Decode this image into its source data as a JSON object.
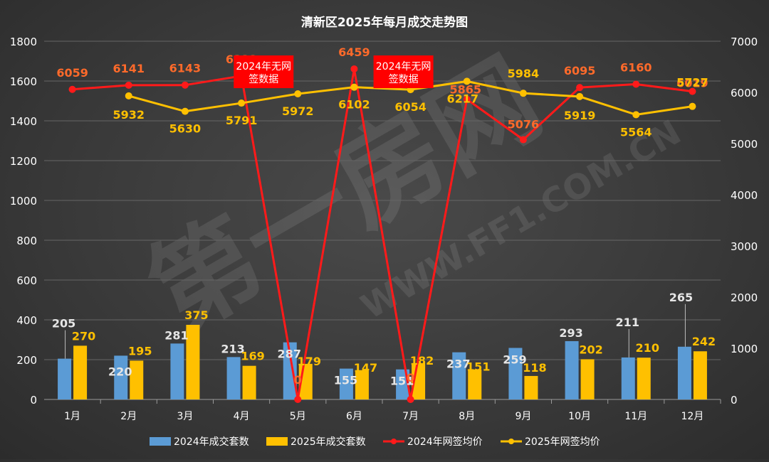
{
  "chart_data": {
    "type": "bar",
    "title": "清新区2025年每月成交走势图",
    "categories": [
      "1月",
      "2月",
      "3月",
      "4月",
      "5月",
      "6月",
      "7月",
      "8月",
      "9月",
      "10月",
      "11月",
      "12月"
    ],
    "y_left": {
      "min": 0,
      "max": 1800,
      "ticks": [
        0,
        200,
        400,
        600,
        800,
        1000,
        1200,
        1400,
        1600,
        1800
      ]
    },
    "y_right": {
      "min": 0,
      "max": 7000,
      "ticks": [
        0,
        1000,
        2000,
        3000,
        4000,
        5000,
        6000,
        7000
      ]
    },
    "series": [
      {
        "name": "2024年成交套数",
        "type": "bar",
        "axis": "left",
        "color": "#5b9bd5",
        "values": [
          205,
          220,
          281,
          213,
          287,
          155,
          151,
          237,
          259,
          293,
          211,
          265
        ]
      },
      {
        "name": "2025年成交套数",
        "type": "bar",
        "axis": "left",
        "color": "#ffc000",
        "values": [
          270,
          195,
          375,
          169,
          179,
          147,
          182,
          151,
          118,
          202,
          210,
          242
        ]
      },
      {
        "name": "2024年网签均价",
        "type": "line",
        "axis": "right",
        "color": "#ff1a1a",
        "values": [
          6059,
          6141,
          6143,
          6322,
          0,
          6459,
          0,
          5865,
          5076,
          6095,
          6160,
          6019
        ]
      },
      {
        "name": "2025年网签均价",
        "type": "line",
        "axis": "right",
        "color": "#ffc000",
        "values": [
          null,
          5932,
          5630,
          5791,
          5972,
          6102,
          6054,
          6217,
          5984,
          5919,
          5564,
          5727
        ]
      }
    ],
    "annotations": [
      {
        "text": "2024年无网\n签数据",
        "month": "5月"
      },
      {
        "text": "2024年无网\n签数据",
        "month": "7月"
      }
    ],
    "legend_position": "bottom",
    "grid": true
  },
  "watermark": "第一房网 WWW.FF1.COM.CN"
}
